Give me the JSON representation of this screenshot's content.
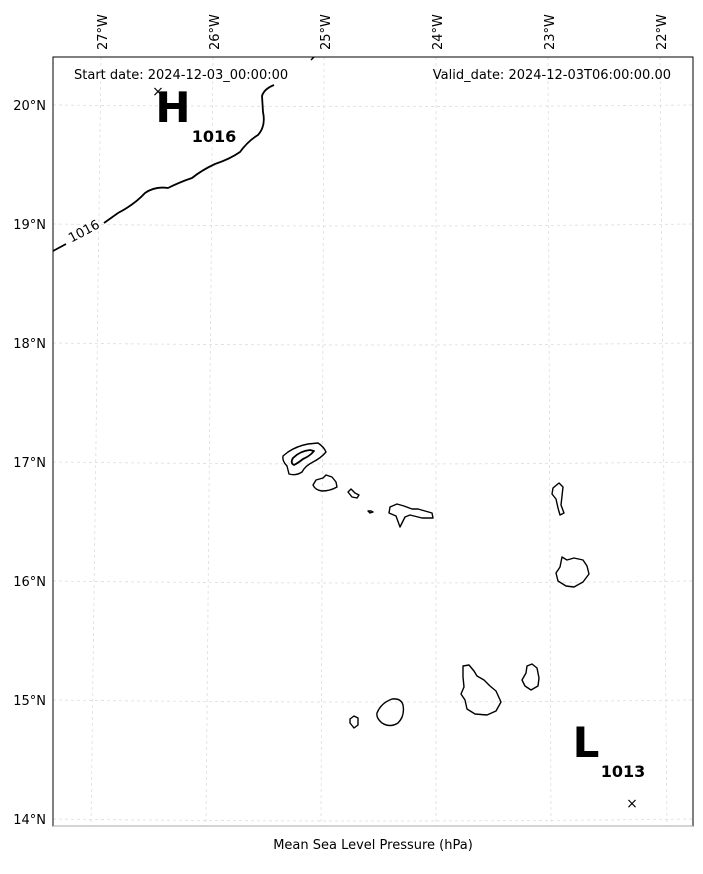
{
  "header": {
    "start_date": "Start date: 2024-12-03_00:00:00",
    "valid_date": "Valid_date: 2024-12-03T06:00:00.00"
  },
  "caption": "Mean Sea Level Pressure (hPa)",
  "axes": {
    "lon_labels": [
      "27°W",
      "26°W",
      "25°W",
      "24°W",
      "23°W",
      "22°W"
    ],
    "lat_labels": [
      "20°N",
      "19°N",
      "18°N",
      "17°N",
      "16°N",
      "15°N",
      "14°N"
    ],
    "grid_color": "#dddddd",
    "frame_color": "#000000"
  },
  "pressure_centers": [
    {
      "type": "high",
      "letter": "H",
      "value": "1016",
      "marker": "×",
      "color": "#000000"
    },
    {
      "type": "low",
      "letter": "L",
      "value": "1013",
      "marker": "×",
      "color": "#000000"
    }
  ],
  "isobars": [
    {
      "label": "1016",
      "color": "#000000"
    }
  ],
  "islands": [
    {
      "name": "santo-antao"
    },
    {
      "name": "sao-vicente"
    },
    {
      "name": "santa-luzia"
    },
    {
      "name": "branco"
    },
    {
      "name": "sao-nicolau"
    },
    {
      "name": "sal"
    },
    {
      "name": "boa-vista"
    },
    {
      "name": "maio"
    },
    {
      "name": "santiago"
    },
    {
      "name": "fogo"
    },
    {
      "name": "brava"
    }
  ]
}
